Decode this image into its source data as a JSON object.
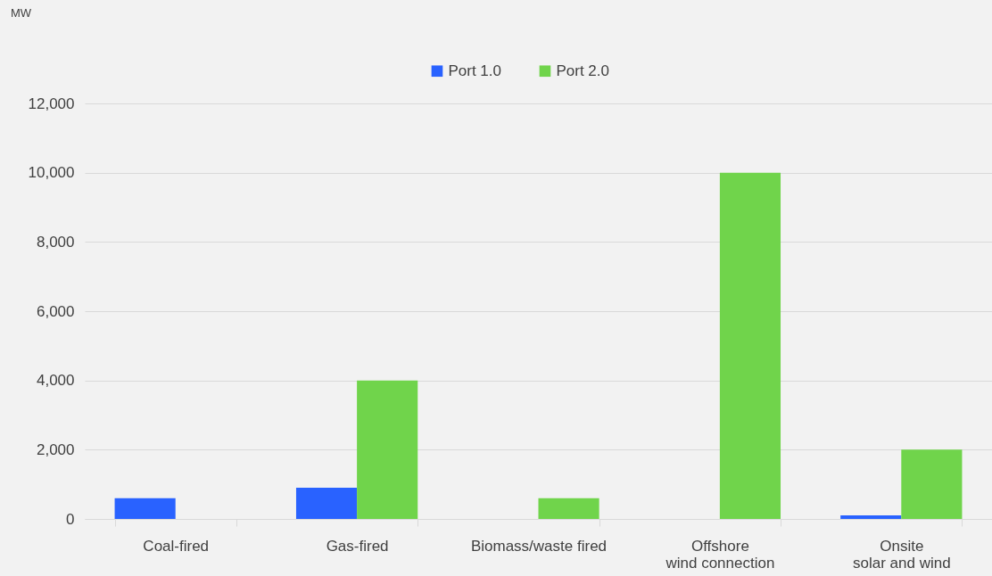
{
  "chart_data": {
    "type": "bar",
    "annotations": [
      "MW"
    ],
    "categories": [
      "Coal-fired",
      "Gas-fired",
      "Biomass/waste fired",
      "Offshore\nwind connection",
      "Onsite\nsolar and wind"
    ],
    "series": [
      {
        "name": "Port 1.0",
        "color": "#2962ff",
        "values": [
          600,
          900,
          null,
          null,
          100
        ]
      },
      {
        "name": "Port 2.0",
        "color": "#70d44b",
        "values": [
          null,
          4000,
          600,
          10000,
          2000
        ]
      }
    ],
    "ylim": [
      0,
      12000
    ],
    "yticks": [
      0,
      {
        "value": 2000,
        "label": "2,000"
      },
      {
        "value": 4000,
        "label": "4,000"
      },
      {
        "value": 6000,
        "label": "6,000"
      },
      {
        "value": 8000,
        "label": "8,000"
      },
      {
        "value": 10000,
        "label": "10,000"
      },
      {
        "value": 12000,
        "label": "12,000"
      }
    ],
    "grid": "y",
    "legend": "top"
  }
}
